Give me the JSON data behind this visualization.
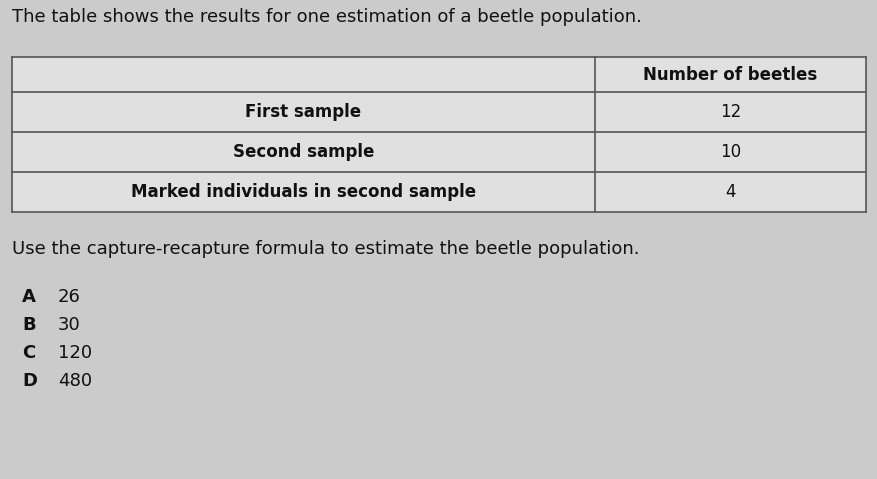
{
  "title": "The table shows the results for one estimation of a beetle population.",
  "title_fontsize": 13.0,
  "col_header": "Number of beetles",
  "col_header_fontsize": 12.0,
  "rows": [
    {
      "label": "First sample",
      "value": "12"
    },
    {
      "label": "Second sample",
      "value": "10"
    },
    {
      "label": "Marked individuals in second sample",
      "value": "4"
    }
  ],
  "row_fontsize": 12.0,
  "question": "Use the capture-recapture formula to estimate the beetle population.",
  "question_fontsize": 13.0,
  "options": [
    {
      "letter": "A",
      "value": "26"
    },
    {
      "letter": "B",
      "value": "30"
    },
    {
      "letter": "C",
      "value": "120"
    },
    {
      "letter": "D",
      "value": "480"
    }
  ],
  "options_fontsize": 13.0,
  "bg_color": "#cbcbcb",
  "table_bg": "#e0e0e0",
  "border_color": "#555555",
  "text_color": "#111111",
  "fig_width": 8.78,
  "fig_height": 4.79,
  "dpi": 100
}
